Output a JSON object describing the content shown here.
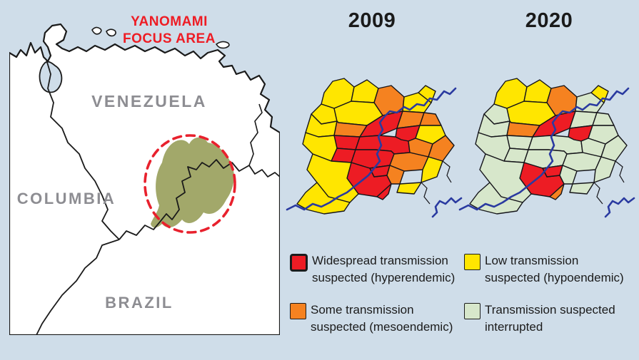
{
  "background_color": "#cfdde9",
  "locator_map": {
    "focus_label_line1": "YANOMAMI",
    "focus_label_line2": "FOCUS AREA",
    "focus_label_color": "#ee1c24",
    "countries": [
      "VENEZUELA",
      "COLUMBIA",
      "BRAZIL"
    ],
    "country_label_color": "#8d8d92",
    "land_color": "#ffffff",
    "sea_color": "#cfdde9",
    "outline_color": "#1a1a1a",
    "focus_area_color": "#a2a86a",
    "focus_ring_color": "#e8212d"
  },
  "maps": {
    "years": [
      "2009",
      "2020"
    ],
    "river_color": "#2a3aa0",
    "border_color": "#15151a",
    "region_levels": {
      "2009": [
        "hypo",
        "hypo",
        "meso",
        "hypo",
        "hypo",
        "hypo",
        "hypo",
        "hypo",
        "meso",
        "hyper",
        "meso",
        "meso",
        "hyper",
        "hypo",
        "hyper",
        "hyper",
        "meso",
        "hypo",
        "hyper",
        "hyper",
        "meso",
        "meso",
        "hypo",
        "hyper",
        "hyper",
        "meso",
        "hyper",
        "hypo",
        "hypo",
        "hypo"
      ],
      "2020": [
        "hypo",
        "hypo",
        "meso",
        "interrupted",
        "hypo",
        "interrupted",
        "hypo",
        "interrupted",
        "meso",
        "hyper",
        "interrupted",
        "interrupted",
        "hyper",
        "interrupted",
        "interrupted",
        "interrupted",
        "interrupted",
        "interrupted",
        "interrupted",
        "interrupted",
        "interrupted",
        "interrupted",
        "interrupted",
        "hyper",
        "hyper",
        "interrupted",
        "meso",
        "interrupted",
        "interrupted",
        "interrupted"
      ]
    }
  },
  "level_colors": {
    "hyper": "#ed1c24",
    "meso": "#f58220",
    "hypo": "#ffe600",
    "interrupted": "#d7e7cb"
  },
  "legend": {
    "items": [
      {
        "level": "hyper",
        "color": "#ed1c24",
        "line1": "Widespread transmission",
        "line2": "suspected (hyperendemic)"
      },
      {
        "level": "meso",
        "color": "#f58220",
        "line1": "Some transmission",
        "line2": "suspected (mesoendemic)"
      },
      {
        "level": "hypo",
        "color": "#ffe600",
        "line1": "Low transmission",
        "line2": "suspected (hypoendemic)"
      },
      {
        "level": "interrupted",
        "color": "#d7e7cb",
        "line1": "Transmission suspected",
        "line2": "interrupted"
      }
    ]
  }
}
